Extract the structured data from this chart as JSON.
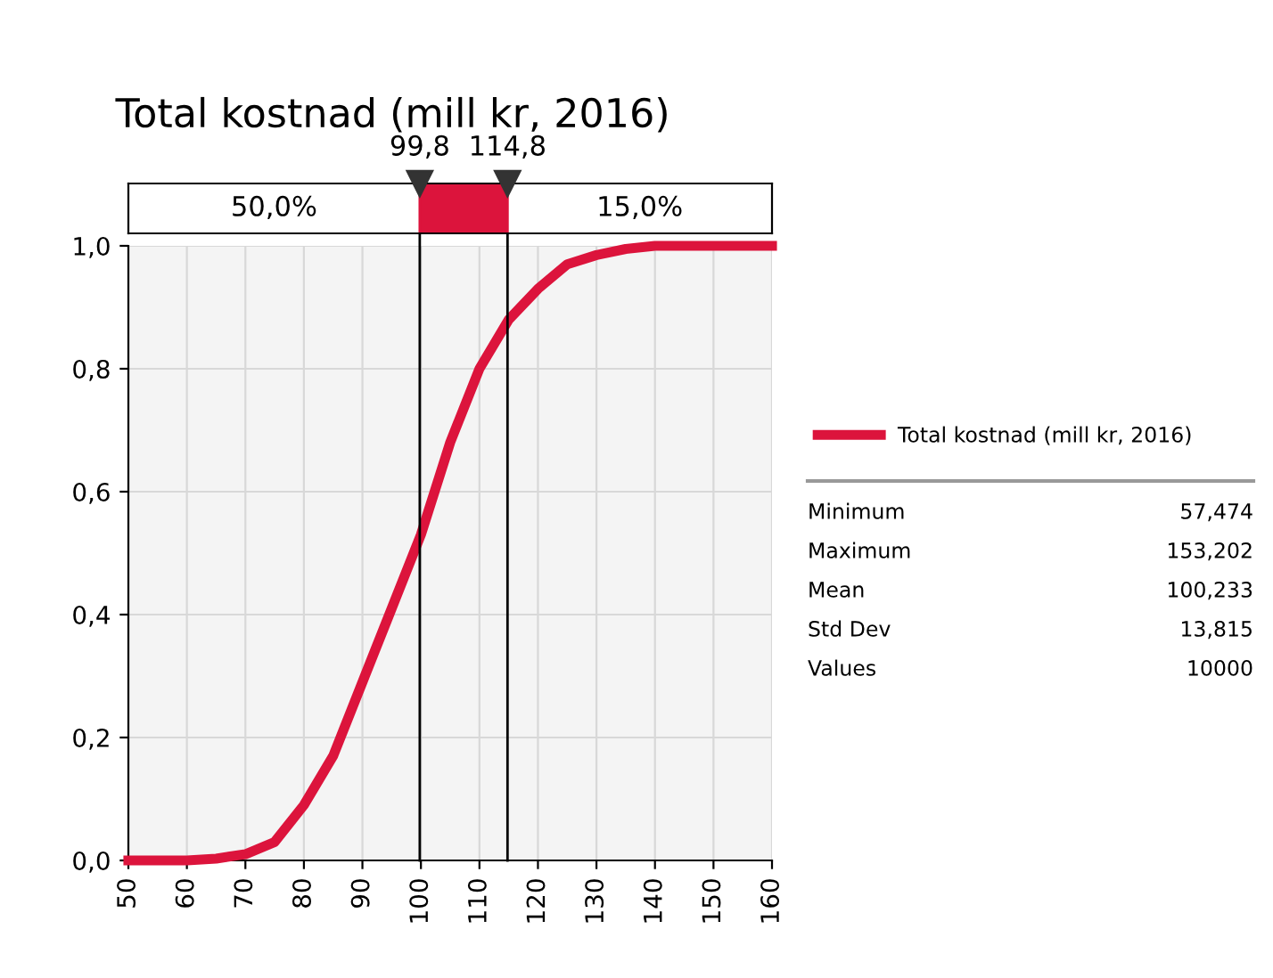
{
  "chart_data": {
    "type": "line",
    "title": "Total kostnad (mill kr, 2016)",
    "x": [
      50,
      60,
      65,
      70,
      75,
      80,
      85,
      90,
      95,
      100,
      105,
      110,
      115,
      120,
      125,
      130,
      135,
      140,
      150,
      160
    ],
    "series": [
      {
        "name": "Total kostnad (mill kr, 2016)",
        "color": "#dc143c",
        "values": [
          0,
          0,
          0.003,
          0.01,
          0.03,
          0.09,
          0.17,
          0.29,
          0.41,
          0.53,
          0.68,
          0.8,
          0.88,
          0.93,
          0.97,
          0.985,
          0.995,
          1.0,
          1.0,
          1.0
        ]
      }
    ],
    "xlim": [
      50,
      160
    ],
    "xticks": [
      50,
      60,
      70,
      80,
      90,
      100,
      110,
      120,
      130,
      140,
      150,
      160
    ],
    "ylim": [
      0,
      1
    ],
    "yticks": [
      {
        "value": 0,
        "label": "0,0"
      },
      {
        "value": 0.2,
        "label": "0,2"
      },
      {
        "value": 0.4,
        "label": "0,4"
      },
      {
        "value": 0.6,
        "label": "0,6"
      },
      {
        "value": 0.8,
        "label": "0,8"
      },
      {
        "value": 1,
        "label": "1,0"
      }
    ],
    "ref_lines": [
      {
        "axis": "x",
        "value": 99.8,
        "label": "99,8",
        "color": "#000000"
      },
      {
        "axis": "x",
        "value": 114.8,
        "label": "114,8",
        "color": "#000000"
      }
    ],
    "annotations": [
      "50,0%",
      "15,0%",
      "Minimum",
      "57,474",
      "Maximum",
      "153,202",
      "Mean",
      "100,233",
      "Std Dev",
      "13,815",
      "Values",
      "10000"
    ],
    "grid": true,
    "legend": "right",
    "line_style": "solid",
    "marker": "none"
  }
}
